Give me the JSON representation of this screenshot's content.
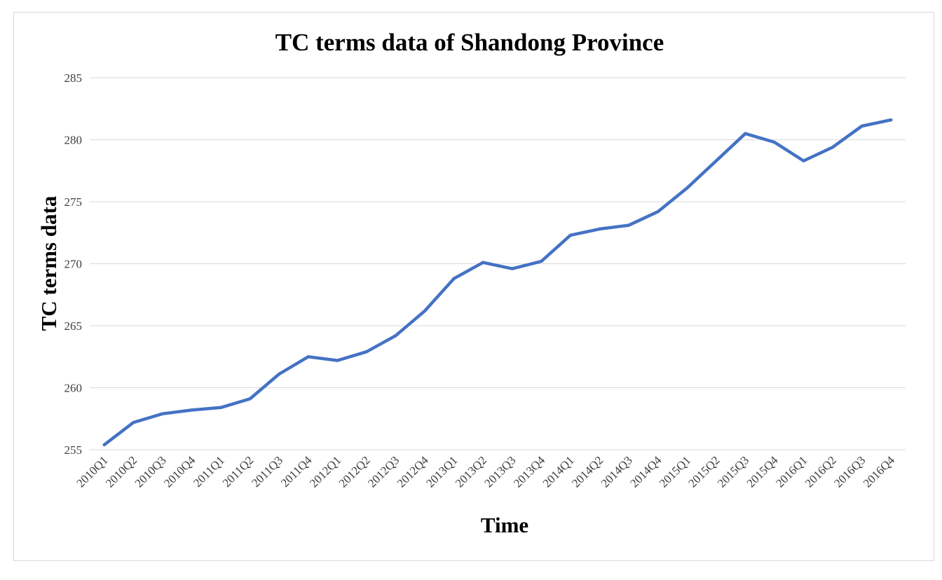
{
  "chart_data": {
    "type": "line",
    "title": "TC terms data of Shandong Province",
    "xlabel": "Time",
    "ylabel": "TC terms data",
    "ylim": [
      255,
      285
    ],
    "yticks": [
      "255",
      "260",
      "265",
      "270",
      "275",
      "280",
      "285"
    ],
    "grid": true,
    "line_color": "#4472c4",
    "categories": [
      "2010Q1",
      "2010Q2",
      "2010Q3",
      "2010Q4",
      "2011Q1",
      "2011Q2",
      "2011Q3",
      "2011Q4",
      "2012Q1",
      "2012Q2",
      "2012Q3",
      "2012Q4",
      "2013Q1",
      "2013Q2",
      "2013Q3",
      "2013Q4",
      "2014Q1",
      "2014Q2",
      "2014Q3",
      "2014Q4",
      "2015Q1",
      "2015Q2",
      "2015Q3",
      "2015Q4",
      "2016Q1",
      "2016Q2",
      "2016Q3",
      "2016Q4"
    ],
    "series": [
      {
        "values": [
          255.4,
          257.2,
          257.9,
          258.2,
          258.4,
          259.1,
          261.1,
          262.5,
          262.2,
          262.9,
          264.2,
          266.2,
          268.8,
          270.1,
          269.6,
          270.2,
          272.3,
          272.8,
          273.1,
          274.2,
          276.1,
          278.3,
          280.5,
          279.8,
          278.3,
          279.4,
          281.1,
          281.6
        ]
      }
    ]
  }
}
